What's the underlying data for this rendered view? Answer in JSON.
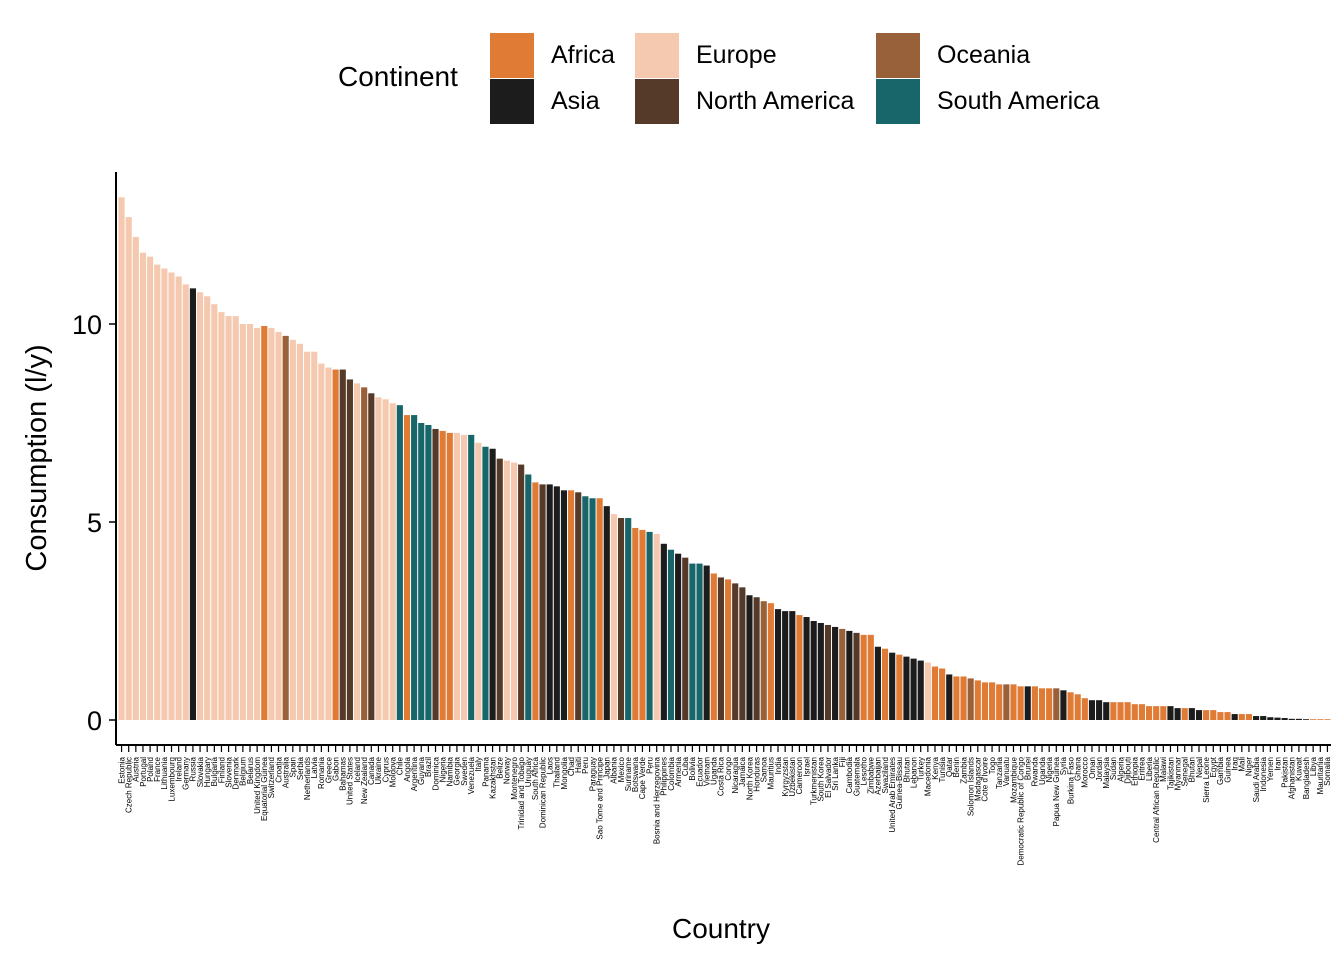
{
  "colors": {
    "Africa": "#E07B36",
    "Asia": "#1C1C1C",
    "Europe": "#F5C9AF",
    "North America": "#553A2A",
    "Oceania": "#99613A",
    "South America": "#18666A"
  },
  "legend": {
    "title": "Continent",
    "items": [
      {
        "label": "Africa",
        "color": "#E07B36"
      },
      {
        "label": "Asia",
        "color": "#1C1C1C"
      },
      {
        "label": "Europe",
        "color": "#F5C9AF"
      },
      {
        "label": "North America",
        "color": "#553A2A"
      },
      {
        "label": "Oceania",
        "color": "#99613A"
      },
      {
        "label": "South America",
        "color": "#18666A"
      }
    ]
  },
  "chart_data": {
    "type": "bar",
    "xlabel": "Country",
    "ylabel": "Consumption (l/y)",
    "ylim": [
      0,
      13.5
    ],
    "yticks": [
      0,
      5,
      10
    ],
    "grid": false,
    "legend_position": "top",
    "bars": [
      {
        "c": "Estonia",
        "v": 13.2,
        "k": "Europe"
      },
      {
        "c": "Czech Republic",
        "v": 12.7,
        "k": "Europe"
      },
      {
        "c": "Austria",
        "v": 12.2,
        "k": "Europe"
      },
      {
        "c": "Portugal",
        "v": 11.8,
        "k": "Europe"
      },
      {
        "c": "Poland",
        "v": 11.7,
        "k": "Europe"
      },
      {
        "c": "France",
        "v": 11.5,
        "k": "Europe"
      },
      {
        "c": "Lithuania",
        "v": 11.4,
        "k": "Europe"
      },
      {
        "c": "Luxembourg",
        "v": 11.3,
        "k": "Europe"
      },
      {
        "c": "Ireland",
        "v": 11.2,
        "k": "Europe"
      },
      {
        "c": "Germany",
        "v": 11.0,
        "k": "Europe"
      },
      {
        "c": "Russia",
        "v": 10.9,
        "k": "Asia"
      },
      {
        "c": "Slovakia",
        "v": 10.8,
        "k": "Europe"
      },
      {
        "c": "Hungary",
        "v": 10.7,
        "k": "Europe"
      },
      {
        "c": "Bulgaria",
        "v": 10.5,
        "k": "Europe"
      },
      {
        "c": "Finland",
        "v": 10.3,
        "k": "Europe"
      },
      {
        "c": "Slovenia",
        "v": 10.2,
        "k": "Europe"
      },
      {
        "c": "Denmark",
        "v": 10.2,
        "k": "Europe"
      },
      {
        "c": "Belgium",
        "v": 10.0,
        "k": "Europe"
      },
      {
        "c": "Belarus",
        "v": 10.0,
        "k": "Europe"
      },
      {
        "c": "United Kingdom",
        "v": 9.9,
        "k": "Europe"
      },
      {
        "c": "Equatorial Guinea",
        "v": 9.95,
        "k": "Africa"
      },
      {
        "c": "Switzerland",
        "v": 9.9,
        "k": "Europe"
      },
      {
        "c": "Croatia",
        "v": 9.8,
        "k": "Europe"
      },
      {
        "c": "Australia",
        "v": 9.7,
        "k": "Oceania"
      },
      {
        "c": "Spain",
        "v": 9.6,
        "k": "Europe"
      },
      {
        "c": "Serbia",
        "v": 9.5,
        "k": "Europe"
      },
      {
        "c": "Netherlands",
        "v": 9.3,
        "k": "Europe"
      },
      {
        "c": "Latvia",
        "v": 9.3,
        "k": "Europe"
      },
      {
        "c": "Romania",
        "v": 9.0,
        "k": "Europe"
      },
      {
        "c": "Greece",
        "v": 8.9,
        "k": "Europe"
      },
      {
        "c": "Gabon",
        "v": 8.85,
        "k": "Africa"
      },
      {
        "c": "Bahamas",
        "v": 8.85,
        "k": "North America"
      },
      {
        "c": "United States",
        "v": 8.6,
        "k": "North America"
      },
      {
        "c": "Iceland",
        "v": 8.5,
        "k": "Europe"
      },
      {
        "c": "New Zealand",
        "v": 8.4,
        "k": "Oceania"
      },
      {
        "c": "Canada",
        "v": 8.25,
        "k": "North America"
      },
      {
        "c": "Ukraine",
        "v": 8.15,
        "k": "Europe"
      },
      {
        "c": "Cyprus",
        "v": 8.1,
        "k": "Europe"
      },
      {
        "c": "Moldova",
        "v": 8.0,
        "k": "Europe"
      },
      {
        "c": "Chile",
        "v": 7.95,
        "k": "South America"
      },
      {
        "c": "Angola",
        "v": 7.7,
        "k": "Africa"
      },
      {
        "c": "Argentina",
        "v": 7.7,
        "k": "South America"
      },
      {
        "c": "Guyana",
        "v": 7.5,
        "k": "South America"
      },
      {
        "c": "Brazil",
        "v": 7.45,
        "k": "South America"
      },
      {
        "c": "Dominica",
        "v": 7.35,
        "k": "North America"
      },
      {
        "c": "Nigeria",
        "v": 7.3,
        "k": "Africa"
      },
      {
        "c": "Namibia",
        "v": 7.25,
        "k": "Africa"
      },
      {
        "c": "Georgia",
        "v": 7.25,
        "k": "Europe"
      },
      {
        "c": "Sweden",
        "v": 7.2,
        "k": "Europe"
      },
      {
        "c": "Venezuela",
        "v": 7.2,
        "k": "South America"
      },
      {
        "c": "Italy",
        "v": 7.0,
        "k": "Europe"
      },
      {
        "c": "Panama",
        "v": 6.9,
        "k": "South America"
      },
      {
        "c": "Kazakhstan",
        "v": 6.85,
        "k": "Asia"
      },
      {
        "c": "Belize",
        "v": 6.6,
        "k": "North America"
      },
      {
        "c": "Norway",
        "v": 6.55,
        "k": "Europe"
      },
      {
        "c": "Montenegro",
        "v": 6.5,
        "k": "Europe"
      },
      {
        "c": "Trinidad and Tobago",
        "v": 6.45,
        "k": "North America"
      },
      {
        "c": "Uruguay",
        "v": 6.2,
        "k": "South America"
      },
      {
        "c": "South Africa",
        "v": 6.0,
        "k": "Africa"
      },
      {
        "c": "Dominican Republic",
        "v": 5.95,
        "k": "North America"
      },
      {
        "c": "Laos",
        "v": 5.95,
        "k": "Asia"
      },
      {
        "c": "Thailand",
        "v": 5.9,
        "k": "Asia"
      },
      {
        "c": "Mongolia",
        "v": 5.8,
        "k": "Asia"
      },
      {
        "c": "Chad",
        "v": 5.8,
        "k": "Africa"
      },
      {
        "c": "Haiti",
        "v": 5.75,
        "k": "North America"
      },
      {
        "c": "Peru",
        "v": 5.65,
        "k": "South America"
      },
      {
        "c": "Paraguay",
        "v": 5.6,
        "k": "South America"
      },
      {
        "c": "Sao Tome and Principe",
        "v": 5.6,
        "k": "Africa"
      },
      {
        "c": "Japan",
        "v": 5.4,
        "k": "Asia"
      },
      {
        "c": "Albania",
        "v": 5.2,
        "k": "Europe"
      },
      {
        "c": "Mexico",
        "v": 5.1,
        "k": "North America"
      },
      {
        "c": "Suriname",
        "v": 5.1,
        "k": "South America"
      },
      {
        "c": "Botswana",
        "v": 4.85,
        "k": "Africa"
      },
      {
        "c": "Cape Verde",
        "v": 4.8,
        "k": "Africa"
      },
      {
        "c": "Peru",
        "v": 4.75,
        "k": "South America"
      },
      {
        "c": "Bosnia and Herzegovina",
        "v": 4.7,
        "k": "Europe"
      },
      {
        "c": "Philippines",
        "v": 4.45,
        "k": "Asia"
      },
      {
        "c": "Colombia",
        "v": 4.3,
        "k": "South America"
      },
      {
        "c": "Armenia",
        "v": 4.2,
        "k": "Asia"
      },
      {
        "c": "Cuba",
        "v": 4.1,
        "k": "North America"
      },
      {
        "c": "Bolivia",
        "v": 3.95,
        "k": "South America"
      },
      {
        "c": "Ecuador",
        "v": 3.95,
        "k": "South America"
      },
      {
        "c": "Vietnam",
        "v": 3.9,
        "k": "Asia"
      },
      {
        "c": "Uganda",
        "v": 3.7,
        "k": "Africa"
      },
      {
        "c": "Costa Rica",
        "v": 3.6,
        "k": "North America"
      },
      {
        "c": "Congo",
        "v": 3.55,
        "k": "Africa"
      },
      {
        "c": "Nicaragua",
        "v": 3.45,
        "k": "North America"
      },
      {
        "c": "Jamaica",
        "v": 3.35,
        "k": "North America"
      },
      {
        "c": "North Korea",
        "v": 3.15,
        "k": "Asia"
      },
      {
        "c": "Honduras",
        "v": 3.1,
        "k": "North America"
      },
      {
        "c": "Samoa",
        "v": 3.0,
        "k": "Oceania"
      },
      {
        "c": "Mauritius",
        "v": 2.95,
        "k": "Africa"
      },
      {
        "c": "India",
        "v": 2.8,
        "k": "Asia"
      },
      {
        "c": "Kyrgyzstan",
        "v": 2.75,
        "k": "Asia"
      },
      {
        "c": "Uzbekistan",
        "v": 2.75,
        "k": "Asia"
      },
      {
        "c": "Cameroon",
        "v": 2.65,
        "k": "Africa"
      },
      {
        "c": "Israel",
        "v": 2.6,
        "k": "Asia"
      },
      {
        "c": "Turkmenistan",
        "v": 2.5,
        "k": "Asia"
      },
      {
        "c": "South Korea",
        "v": 2.45,
        "k": "Asia"
      },
      {
        "c": "El Salvador",
        "v": 2.4,
        "k": "North America"
      },
      {
        "c": "Sri Lanka",
        "v": 2.35,
        "k": "Asia"
      },
      {
        "c": "Fiji",
        "v": 2.3,
        "k": "Oceania"
      },
      {
        "c": "Cambodia",
        "v": 2.25,
        "k": "Asia"
      },
      {
        "c": "Guatemala",
        "v": 2.2,
        "k": "North America"
      },
      {
        "c": "Lesotho",
        "v": 2.15,
        "k": "Africa"
      },
      {
        "c": "Zimbabwe",
        "v": 2.15,
        "k": "Africa"
      },
      {
        "c": "Azerbaijan",
        "v": 1.85,
        "k": "Asia"
      },
      {
        "c": "Swaziland",
        "v": 1.8,
        "k": "Africa"
      },
      {
        "c": "United Arab Emirates",
        "v": 1.7,
        "k": "Asia"
      },
      {
        "c": "Guinea-Bissau",
        "v": 1.65,
        "k": "Africa"
      },
      {
        "c": "Bhutan",
        "v": 1.6,
        "k": "Asia"
      },
      {
        "c": "Lebanon",
        "v": 1.55,
        "k": "Asia"
      },
      {
        "c": "Turkey",
        "v": 1.5,
        "k": "Asia"
      },
      {
        "c": "Macedonia",
        "v": 1.45,
        "k": "Europe"
      },
      {
        "c": "Kenya",
        "v": 1.35,
        "k": "Africa"
      },
      {
        "c": "Tunisia",
        "v": 1.3,
        "k": "Africa"
      },
      {
        "c": "Qatar",
        "v": 1.15,
        "k": "Asia"
      },
      {
        "c": "Benin",
        "v": 1.1,
        "k": "Africa"
      },
      {
        "c": "Zambia",
        "v": 1.1,
        "k": "Africa"
      },
      {
        "c": "Solomon Islands",
        "v": 1.05,
        "k": "Oceania"
      },
      {
        "c": "Madagascar",
        "v": 1.0,
        "k": "Africa"
      },
      {
        "c": "Cote d'Ivoire",
        "v": 0.95,
        "k": "Africa"
      },
      {
        "c": "Togo",
        "v": 0.95,
        "k": "Africa"
      },
      {
        "c": "Tanzania",
        "v": 0.9,
        "k": "Africa"
      },
      {
        "c": "Vanuatu",
        "v": 0.9,
        "k": "Oceania"
      },
      {
        "c": "Mozambique",
        "v": 0.9,
        "k": "Africa"
      },
      {
        "c": "Democratic Republic of Congo",
        "v": 0.85,
        "k": "Africa"
      },
      {
        "c": "Brunei",
        "v": 0.85,
        "k": "Asia"
      },
      {
        "c": "Rwanda",
        "v": 0.85,
        "k": "Africa"
      },
      {
        "c": "Uganda",
        "v": 0.8,
        "k": "Africa"
      },
      {
        "c": "Nigeria",
        "v": 0.8,
        "k": "Africa"
      },
      {
        "c": "Papua New Guinea",
        "v": 0.8,
        "k": "Oceania"
      },
      {
        "c": "Syria",
        "v": 0.75,
        "k": "Asia"
      },
      {
        "c": "Burkina Faso",
        "v": 0.7,
        "k": "Africa"
      },
      {
        "c": "Ghana",
        "v": 0.65,
        "k": "Africa"
      },
      {
        "c": "Morocco",
        "v": 0.55,
        "k": "Africa"
      },
      {
        "c": "Oman",
        "v": 0.5,
        "k": "Asia"
      },
      {
        "c": "Jordan",
        "v": 0.5,
        "k": "Asia"
      },
      {
        "c": "Malaysia",
        "v": 0.45,
        "k": "Asia"
      },
      {
        "c": "Sudan",
        "v": 0.45,
        "k": "Africa"
      },
      {
        "c": "Algeria",
        "v": 0.45,
        "k": "Africa"
      },
      {
        "c": "Djibouti",
        "v": 0.45,
        "k": "Africa"
      },
      {
        "c": "Ethiopia",
        "v": 0.4,
        "k": "Africa"
      },
      {
        "c": "Eritrea",
        "v": 0.4,
        "k": "Africa"
      },
      {
        "c": "Liberia",
        "v": 0.35,
        "k": "Africa"
      },
      {
        "c": "Central African Republic",
        "v": 0.35,
        "k": "Africa"
      },
      {
        "c": "Malawi",
        "v": 0.35,
        "k": "Africa"
      },
      {
        "c": "Tajikistan",
        "v": 0.35,
        "k": "Asia"
      },
      {
        "c": "Myanmar",
        "v": 0.3,
        "k": "Asia"
      },
      {
        "c": "Senegal",
        "v": 0.3,
        "k": "Africa"
      },
      {
        "c": "Bhutan",
        "v": 0.3,
        "k": "Asia"
      },
      {
        "c": "Nepal",
        "v": 0.25,
        "k": "Asia"
      },
      {
        "c": "Sierra Leone",
        "v": 0.25,
        "k": "Africa"
      },
      {
        "c": "Egypt",
        "v": 0.25,
        "k": "Africa"
      },
      {
        "c": "Gambia",
        "v": 0.2,
        "k": "Africa"
      },
      {
        "c": "Guinea",
        "v": 0.2,
        "k": "Africa"
      },
      {
        "c": "Iraq",
        "v": 0.15,
        "k": "Asia"
      },
      {
        "c": "Mali",
        "v": 0.15,
        "k": "Africa"
      },
      {
        "c": "Niger",
        "v": 0.15,
        "k": "Africa"
      },
      {
        "c": "Saudi Arabia",
        "v": 0.1,
        "k": "Asia"
      },
      {
        "c": "Indonesia",
        "v": 0.1,
        "k": "Asia"
      },
      {
        "c": "Yemen",
        "v": 0.07,
        "k": "Asia"
      },
      {
        "c": "Iran",
        "v": 0.06,
        "k": "Asia"
      },
      {
        "c": "Pakistan",
        "v": 0.05,
        "k": "Asia"
      },
      {
        "c": "Afghanistan",
        "v": 0.03,
        "k": "Asia"
      },
      {
        "c": "Kuwait",
        "v": 0.03,
        "k": "Asia"
      },
      {
        "c": "Bangladesh",
        "v": 0.02,
        "k": "Asia"
      },
      {
        "c": "Libya",
        "v": 0.02,
        "k": "Africa"
      },
      {
        "c": "Mauritania",
        "v": 0.02,
        "k": "Africa"
      },
      {
        "c": "Somalia",
        "v": 0.02,
        "k": "Africa"
      }
    ]
  }
}
